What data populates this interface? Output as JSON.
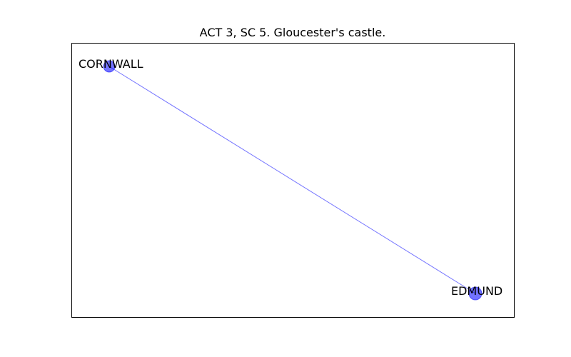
{
  "figure": {
    "title": "ACT 3, SC 5. Gloucester's castle."
  },
  "graph": {
    "node_color": "#0000ff",
    "node_opacity": 0.55,
    "edge_color": "#0000ff",
    "edge_opacity": 0.55,
    "nodes": [
      {
        "id": "cornwall",
        "label": "CORNWALL"
      },
      {
        "id": "edmund",
        "label": "EDMUND"
      }
    ],
    "edges": [
      {
        "source": "cornwall",
        "target": "edmund"
      }
    ]
  }
}
